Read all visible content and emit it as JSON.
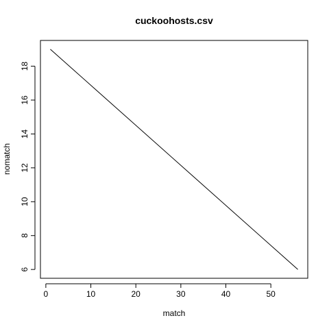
{
  "chart_data": {
    "type": "line",
    "title": "cuckoohosts.csv",
    "xlabel": "match",
    "ylabel": "nomatch",
    "xlim": [
      -1.2,
      58.2
    ],
    "ylim": [
      5.48,
      19.52
    ],
    "xticks": [
      0,
      10,
      20,
      30,
      40,
      50
    ],
    "yticks": [
      6,
      8,
      10,
      12,
      14,
      16,
      18
    ],
    "grid": false,
    "series": [
      {
        "x": [
          1,
          56
        ],
        "y": [
          19,
          6
        ]
      }
    ]
  }
}
